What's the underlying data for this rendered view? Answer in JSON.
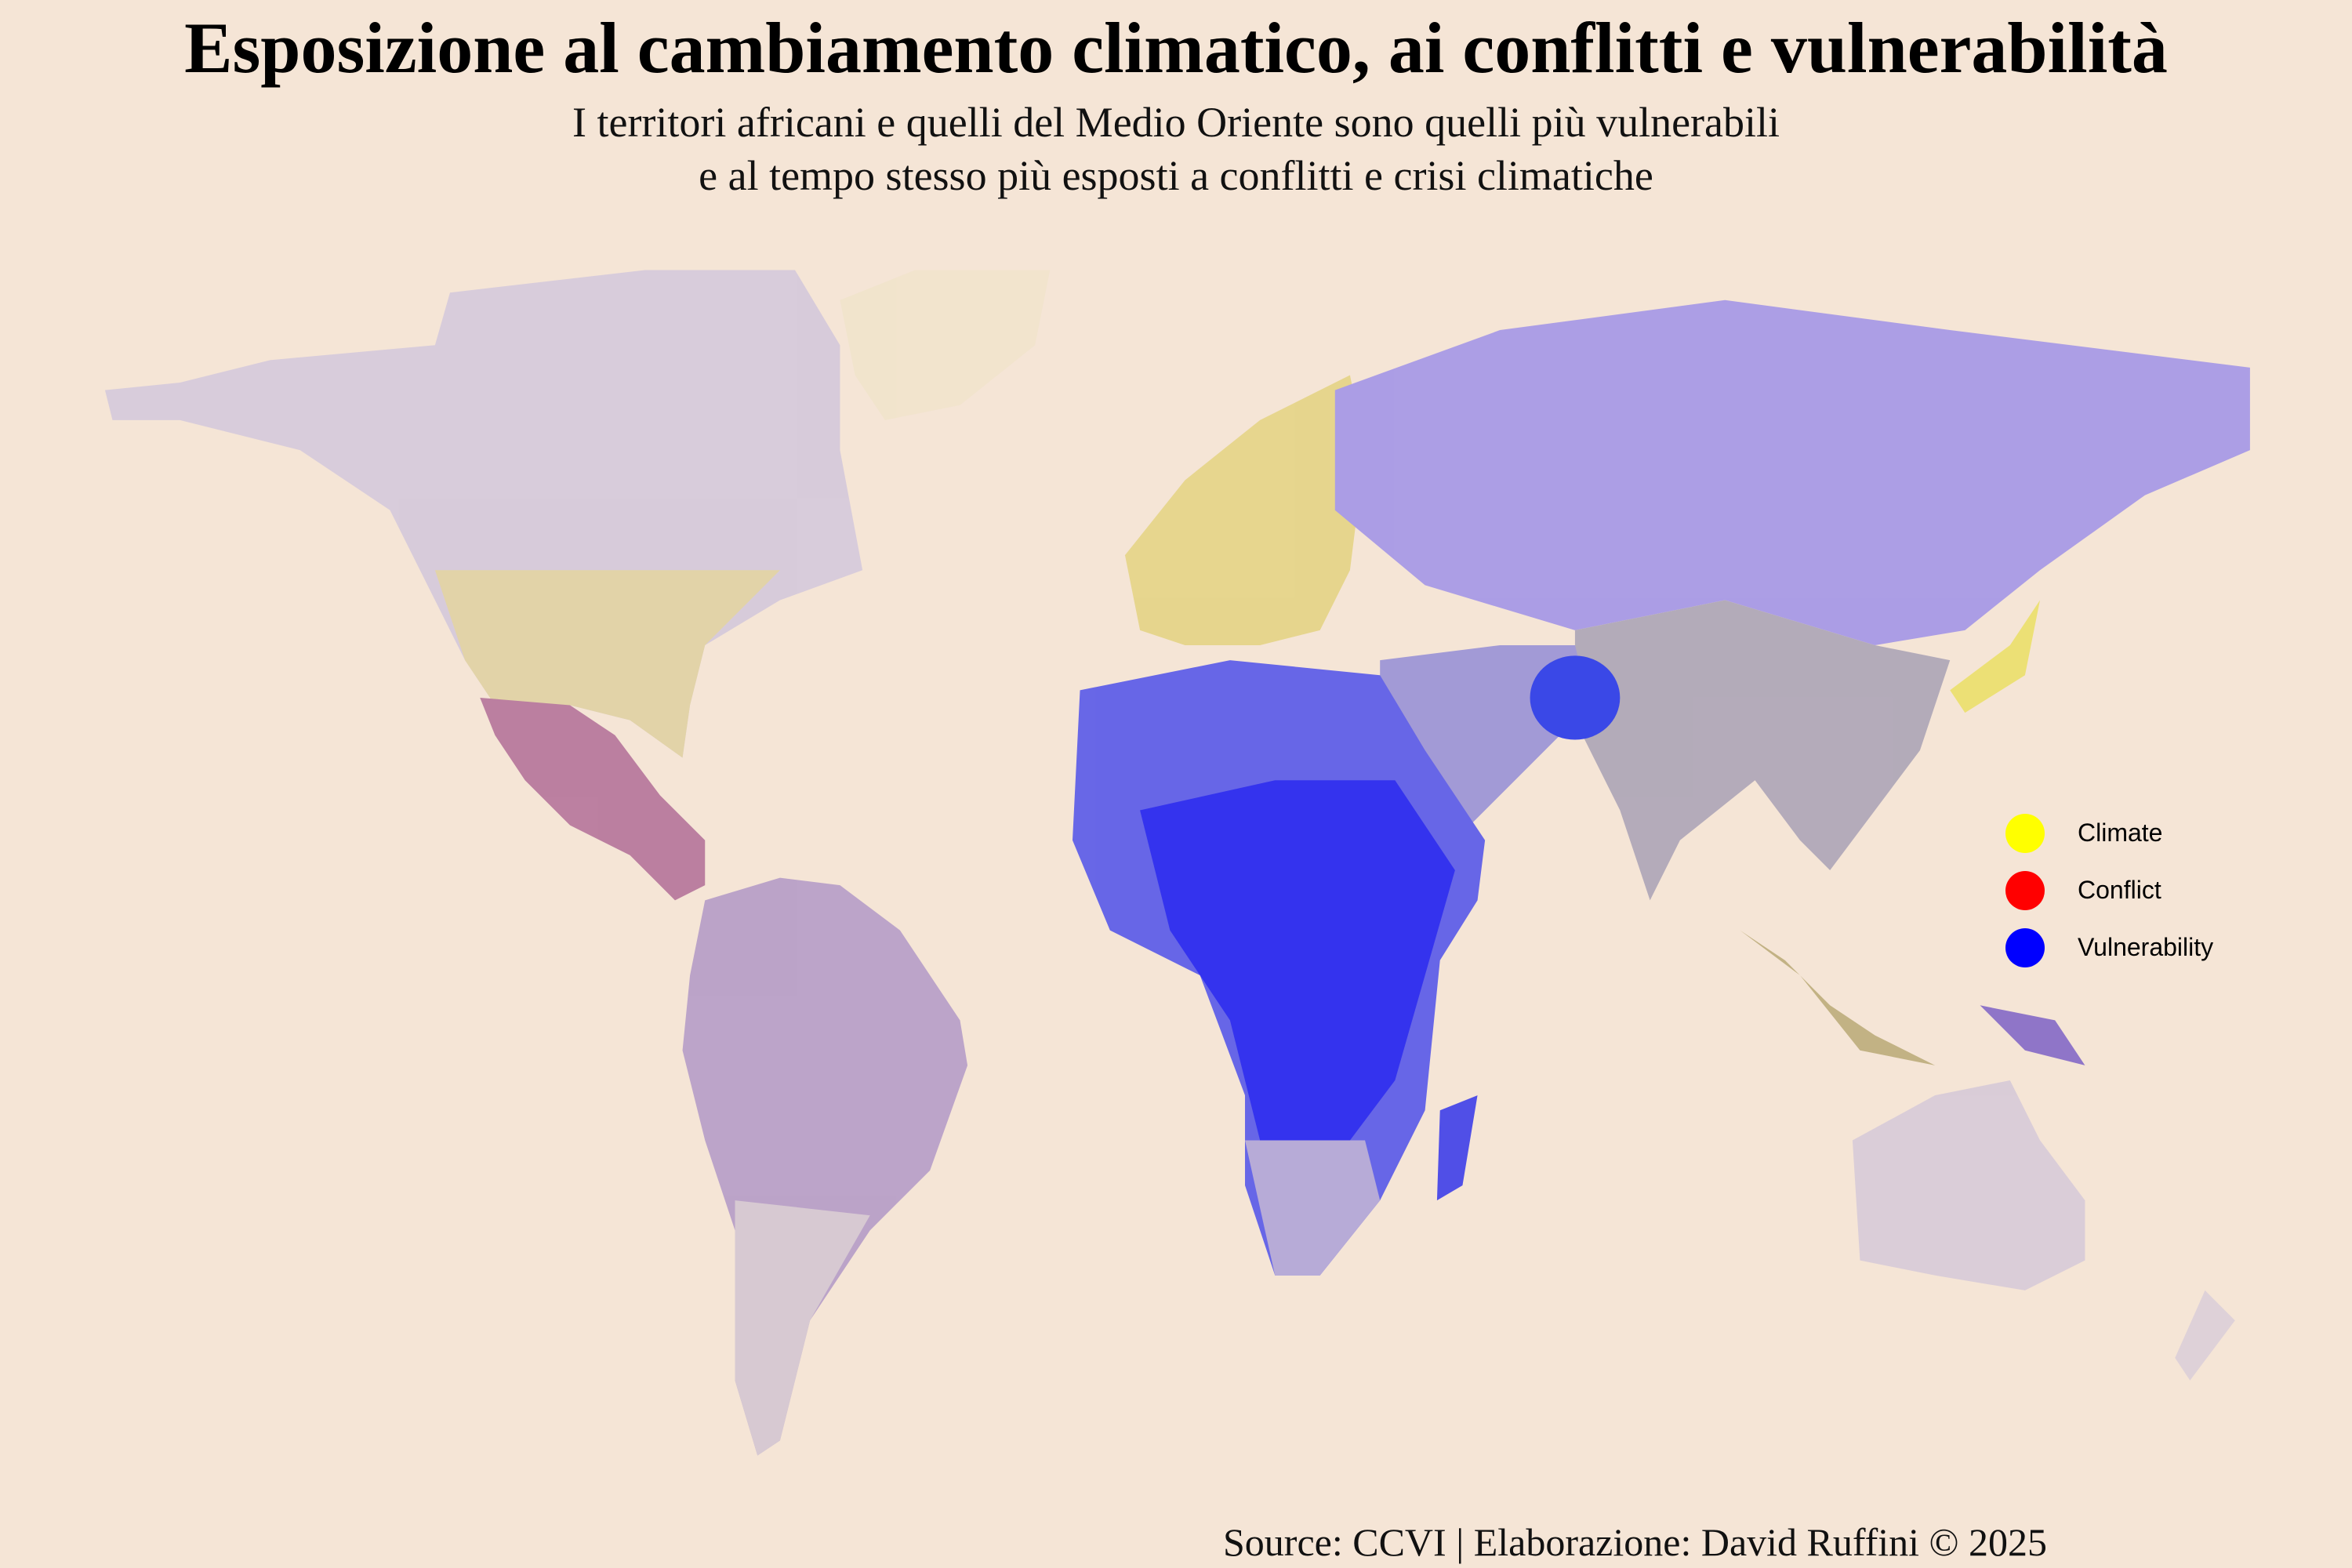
{
  "title": "Esposizione al cambiamento climatico, ai conflitti e vulnerabilità",
  "subtitle": {
    "line1": "I territori africani e quelli del Medio Oriente sono quelli più vulnerabili",
    "line2": "e al tempo stesso più esposti a conflitti e crisi climatiche"
  },
  "legend": {
    "items": [
      {
        "label": "Climate",
        "color": "#ffff00"
      },
      {
        "label": "Conflict",
        "color": "#ff0000"
      },
      {
        "label": "Vulnerability",
        "color": "#0000ff"
      }
    ]
  },
  "map": {
    "background": "#f5e5d6",
    "region_colors": {
      "africa_high_vulnerability": "#2a2af0",
      "middle_east_asia": "#a89ae6",
      "europe_climate": "#e6d58a",
      "latin_america_conflict": "#b87a9e",
      "low_exposure": "#d6cadb"
    }
  },
  "source": "Source: CCVI | Elaborazione: David Ruffini © 2025"
}
